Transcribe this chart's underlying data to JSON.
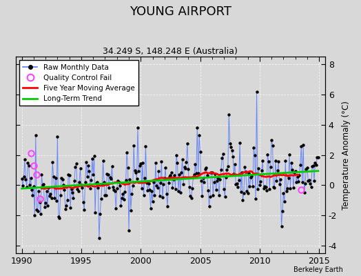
{
  "title": "YOUNG AIRPORT",
  "subtitle": "34.249 S, 148.248 E (Australia)",
  "watermark": "Berkeley Earth",
  "ylabel": "Temperature Anomaly (°C)",
  "xlim": [
    1989.5,
    2015.5
  ],
  "ylim": [
    -4.5,
    8.5
  ],
  "yticks": [
    -4,
    -2,
    0,
    2,
    4,
    6,
    8
  ],
  "xticks": [
    1990,
    1995,
    2000,
    2005,
    2010,
    2015
  ],
  "bg_color": "#d8d8d8",
  "line_color": "#5577ff",
  "ma_color": "#ff0000",
  "trend_color": "#00cc00",
  "qc_color": "#ff44ff",
  "seed": 42
}
